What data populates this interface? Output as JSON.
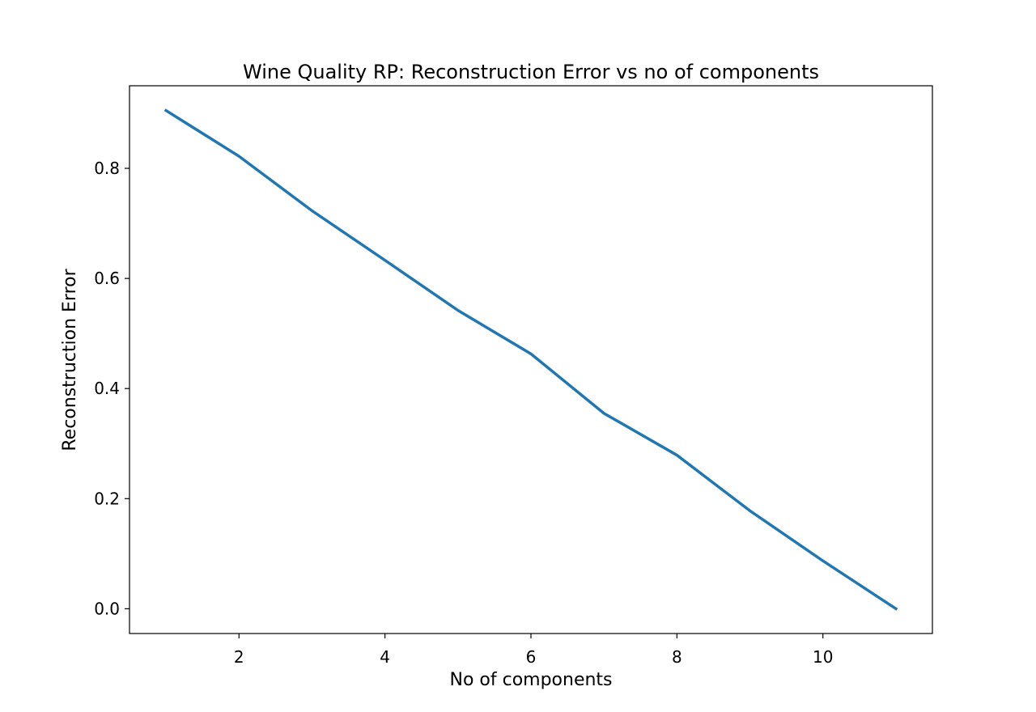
{
  "chart_data": {
    "type": "line",
    "title": "Wine Quality RP: Reconstruction Error vs no of components",
    "xlabel": "No of components",
    "ylabel": "Reconstruction Error",
    "xlim": [
      0.5,
      11.5
    ],
    "ylim": [
      -0.045,
      0.95
    ],
    "xticks": [
      2,
      4,
      6,
      8,
      10
    ],
    "xtick_labels": [
      "2",
      "4",
      "6",
      "8",
      "10"
    ],
    "yticks": [
      0.0,
      0.2,
      0.4,
      0.6,
      0.8
    ],
    "ytick_labels": [
      "0.0",
      "0.2",
      "0.4",
      "0.6",
      "0.8"
    ],
    "grid": false,
    "legend": "none",
    "series": [
      {
        "color": "#1f77b4",
        "x": [
          1,
          2,
          3,
          4,
          5,
          6,
          7,
          8,
          9,
          10,
          11
        ],
        "y": [
          0.905,
          0.822,
          0.723,
          0.633,
          0.542,
          0.463,
          0.355,
          0.279,
          0.178,
          0.087,
          0.0
        ]
      }
    ]
  }
}
